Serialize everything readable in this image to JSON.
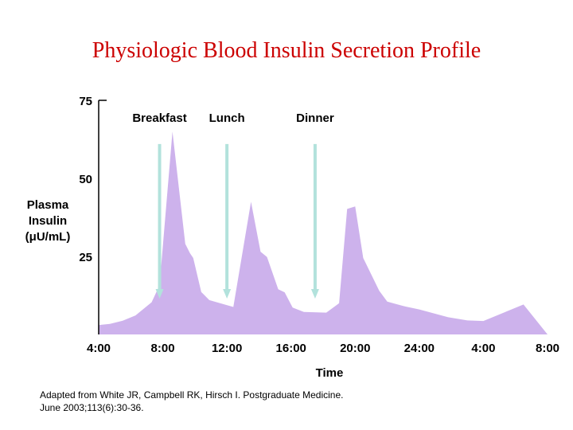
{
  "title": "Physiologic Blood Insulin Secretion Profile",
  "citation": {
    "line1": "Adapted from White JR, Campbell RK, Hirsch I.  Postgraduate Medicine.",
    "line2": "June 2003;113(6):30-36."
  },
  "colors": {
    "title": "#cc0000",
    "area": "#cdb2ec",
    "arrow": "#b2e2dc",
    "axis": "#000000"
  },
  "chart_data": {
    "type": "area",
    "title": "Physiologic Blood Insulin Secretion Profile",
    "xlabel": "Time",
    "ylabel": [
      "Plasma",
      "Insulin",
      "(μU/mL)"
    ],
    "ylim": [
      0,
      75
    ],
    "yticks": [
      "25",
      "50",
      "75"
    ],
    "ytick_values": [
      25,
      50,
      75
    ],
    "xlim": [
      4,
      32
    ],
    "xticks": [
      "4:00",
      "8:00",
      "12:00",
      "16:00",
      "20:00",
      "24:00",
      "4:00",
      "8:00"
    ],
    "xtick_values": [
      4,
      8,
      12,
      16,
      20,
      24,
      28,
      32
    ],
    "grid": false,
    "series": [
      {
        "name": "Plasma insulin",
        "x": [
          4,
          4.7,
          5.5,
          6.3,
          7.3,
          7.8,
          8.6,
          9.4,
          9.7,
          9.9,
          10.4,
          10.9,
          12.4,
          13.5,
          14.1,
          14.5,
          15.2,
          15.6,
          16.1,
          16.8,
          18.2,
          19.0,
          19.5,
          20.0,
          20.5,
          21.5,
          22.0,
          23.0,
          24.0,
          25.8,
          27.0,
          28.0,
          30.5,
          32.0
        ],
        "y": [
          3,
          3.4,
          4.4,
          6.1,
          10.3,
          15.8,
          65,
          29,
          26,
          24.5,
          13.6,
          11,
          8.8,
          42.5,
          26.5,
          24.8,
          14.5,
          13.5,
          8.6,
          7.2,
          7,
          10,
          40.2,
          41,
          24.5,
          14,
          10.5,
          9.1,
          8,
          5.5,
          4.5,
          4.3,
          9.6,
          0
        ]
      }
    ],
    "annotations": [
      {
        "label": "Breakfast",
        "x": 7.8,
        "arrow_from": 61,
        "arrow_to": 12
      },
      {
        "label": "Lunch",
        "x": 12.0,
        "arrow_from": 61,
        "arrow_to": 12
      },
      {
        "label": "Dinner",
        "x": 17.5,
        "arrow_from": 61,
        "arrow_to": 12
      }
    ]
  }
}
